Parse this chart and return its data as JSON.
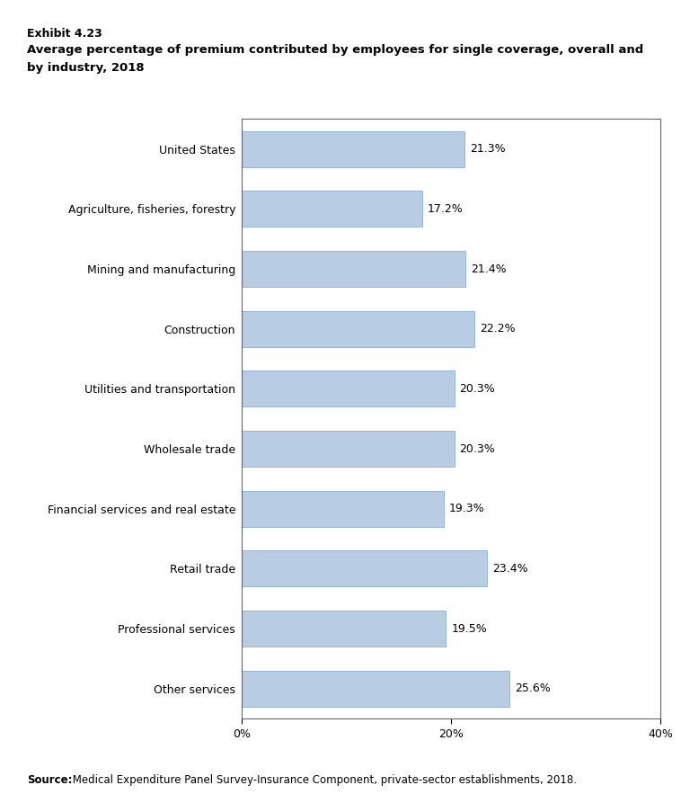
{
  "title_line1": "Exhibit 4.23",
  "title_line2": "Average percentage of premium contributed by employees for single coverage, overall and",
  "title_line3": "by industry, 2018",
  "categories": [
    "United States",
    "Agriculture, fisheries, forestry",
    "Mining and manufacturing",
    "Construction",
    "Utilities and transportation",
    "Wholesale trade",
    "Financial services and real estate",
    "Retail trade",
    "Professional services",
    "Other services"
  ],
  "values": [
    21.3,
    17.2,
    21.4,
    22.2,
    20.3,
    20.3,
    19.3,
    23.4,
    19.5,
    25.6
  ],
  "bar_color": "#b8cce4",
  "bar_edge_color": "#8eaece",
  "xlim": [
    0,
    40
  ],
  "xticks": [
    0,
    20,
    40
  ],
  "xtick_labels": [
    "0%",
    "20%",
    "40%"
  ],
  "source_bold": "Source:",
  "source_text": " Medical Expenditure Panel Survey-Insurance Component, private-sector establishments, 2018.",
  "value_fontsize": 9,
  "label_fontsize": 9,
  "tick_fontsize": 9,
  "figsize": [
    7.58,
    8.83
  ],
  "dpi": 100
}
